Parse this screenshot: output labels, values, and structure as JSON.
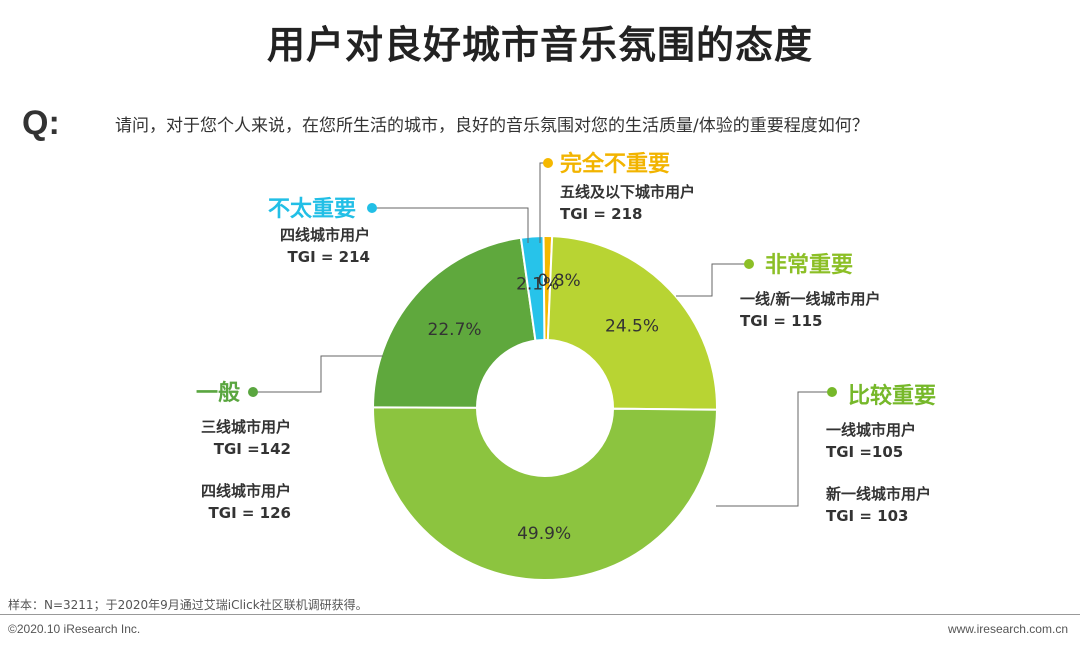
{
  "page": {
    "title": "用户对良好城市音乐氛围的态度",
    "question_mark": "Q:",
    "question": "请问，对于您个人来说，在您所生活的城市，良好的音乐氛围对您的生活质量/体验的重要程度如何？",
    "sample_note": "样本：N=3211；于2020年9月通过艾瑞iClick社区联机调研获得。",
    "copyright": "©2020.10 iResearch Inc.",
    "website": "www.iresearch.com.cn"
  },
  "chart_data": {
    "type": "pie",
    "title": "用户对良好城市音乐氛围的态度",
    "unit": "%",
    "slices": [
      {
        "name": "非常重要",
        "value": 24.5,
        "color": "#b8d433",
        "details": [
          "一线/新一线城市用户",
          "TGI = 115"
        ]
      },
      {
        "name": "比较重要",
        "value": 49.9,
        "color": "#8cc43f",
        "details": [
          "一线城市用户",
          "TGI =105",
          "新一线城市用户",
          "TGI = 103"
        ]
      },
      {
        "name": "一般",
        "value": 22.7,
        "color": "#5fa83d",
        "details": [
          "三线城市用户",
          "TGI =142",
          "四线城市用户",
          "TGI = 126"
        ]
      },
      {
        "name": "不太重要",
        "value": 2.1,
        "color": "#27c3ea",
        "details": [
          "四线城市用户",
          "TGI = 214"
        ]
      },
      {
        "name": "完全不重要",
        "value": 0.8,
        "color": "#f5b800",
        "details": [
          "五线及以下城市用户",
          "TGI = 218"
        ]
      }
    ],
    "label_colors": {
      "非常重要": "#8cbf26",
      "比较重要": "#76b82a",
      "一般": "#5aa640",
      "不太重要": "#22bfe6",
      "完全不重要": "#f2b400"
    },
    "start_slice": "完全不重要",
    "direction": "clockwise",
    "donut": true
  }
}
